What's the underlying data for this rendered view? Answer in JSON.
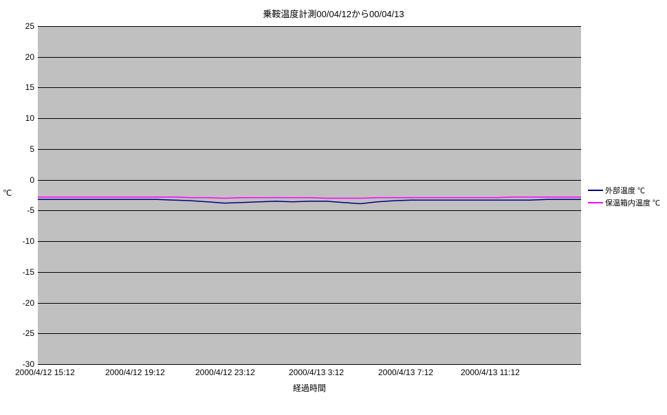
{
  "chart": {
    "type": "line",
    "title": "乗鞍温度計測00/04/12から00/04/13",
    "title_fontsize": 13,
    "background_color": "#ffffff",
    "plot_background_color": "#c0c0c0",
    "grid_color": "#000000",
    "ylabel": "℃",
    "xlabel": "経過時間",
    "label_fontsize": 12,
    "tick_fontsize": 12,
    "ylim": [
      -30,
      25
    ],
    "ytick_step": 5,
    "yticks": [
      25,
      20,
      15,
      10,
      5,
      0,
      -5,
      -10,
      -15,
      -20,
      -25,
      -30
    ],
    "xticks": [
      "2000/4/12 15:12",
      "2000/4/12 19:12",
      "2000/4/12 23:12",
      "2000/4/13 3:12",
      "2000/4/13 7:12",
      "2000/4/13 11:12"
    ],
    "series": [
      {
        "name": "外部温度 ℃",
        "color": "#000080",
        "line_width": 1.5,
        "values": [
          -3.2,
          -3.2,
          -3.2,
          -3.2,
          -3.2,
          -3.2,
          -3.2,
          -3.2,
          -3.3,
          -3.4,
          -3.6,
          -3.8,
          -3.7,
          -3.6,
          -3.5,
          -3.6,
          -3.5,
          -3.5,
          -3.7,
          -3.9,
          -3.6,
          -3.4,
          -3.3,
          -3.3,
          -3.3,
          -3.3,
          -3.3,
          -3.3,
          -3.3,
          -3.3,
          -3.2,
          -3.2,
          -3.2
        ]
      },
      {
        "name": "保温箱内温度 ℃",
        "color": "#ff00ff",
        "line_width": 1.5,
        "values": [
          -2.8,
          -2.8,
          -2.8,
          -2.8,
          -2.8,
          -2.8,
          -2.8,
          -2.8,
          -2.8,
          -2.9,
          -2.9,
          -3.0,
          -2.9,
          -2.9,
          -2.9,
          -2.9,
          -2.9,
          -3.0,
          -3.0,
          -3.0,
          -2.9,
          -2.9,
          -2.9,
          -2.9,
          -2.9,
          -2.9,
          -2.9,
          -2.9,
          -2.8,
          -2.8,
          -2.8,
          -2.8,
          -2.8
        ]
      }
    ],
    "legend": {
      "position": "right",
      "fontsize": 11
    }
  }
}
